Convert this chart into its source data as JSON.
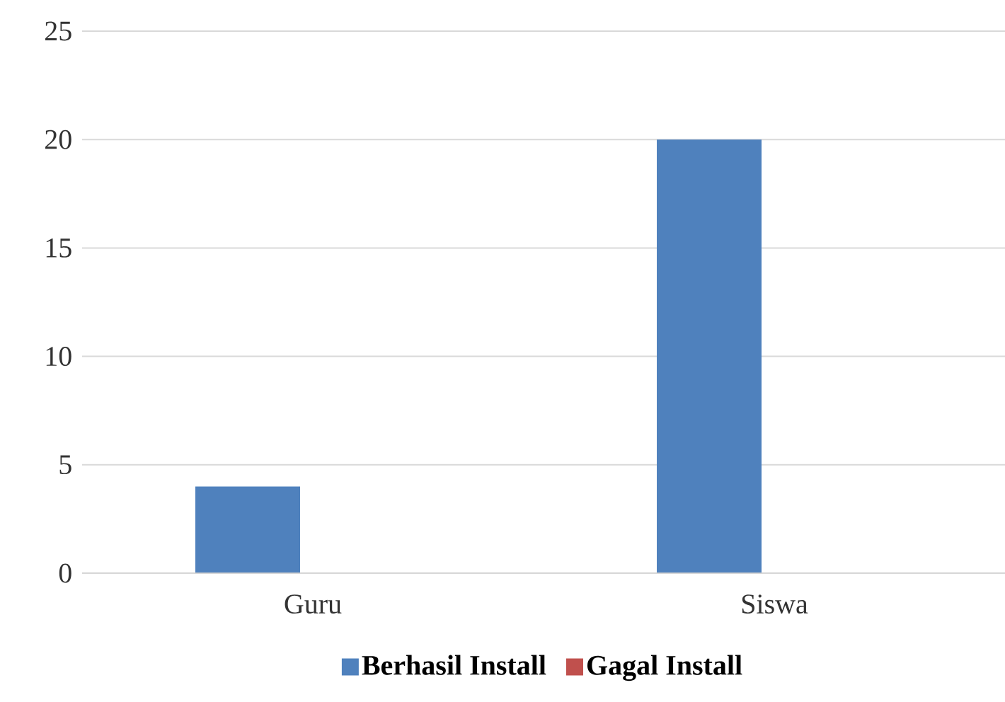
{
  "chart_data": {
    "type": "bar",
    "categories": [
      "Guru",
      "Siswa"
    ],
    "series": [
      {
        "name": "Berhasil Install",
        "color": "#4f81bd",
        "values": [
          4,
          20
        ]
      },
      {
        "name": "Gagal Install",
        "color": "#c0504d",
        "values": [
          0,
          0
        ]
      }
    ],
    "ylim": [
      0,
      25
    ],
    "yticks": [
      0,
      5,
      10,
      15,
      20,
      25
    ],
    "grid": "y",
    "legend": "bottom"
  }
}
